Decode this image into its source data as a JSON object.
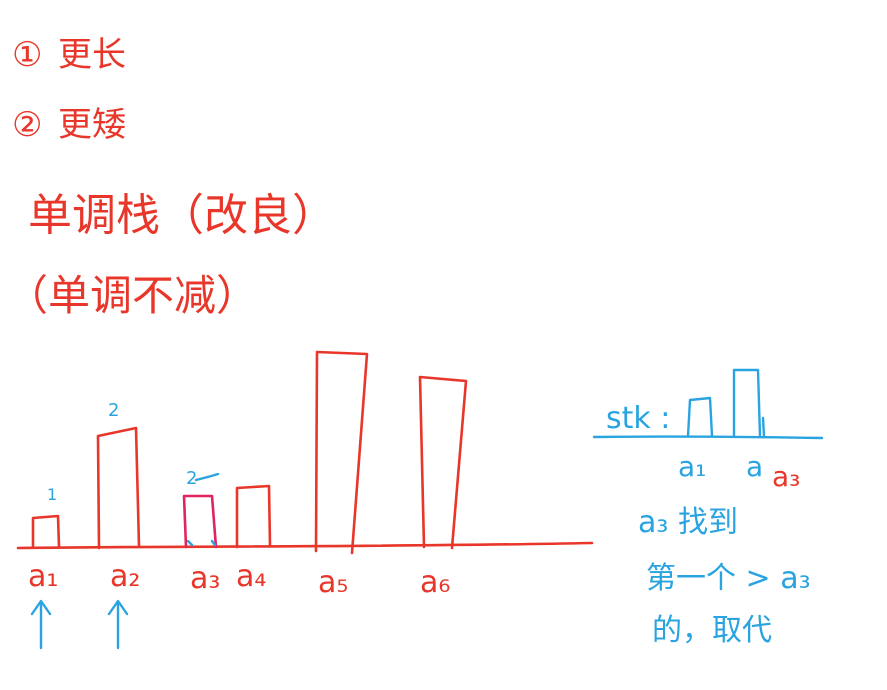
{
  "notes": {
    "line1_marker": "①",
    "line1_text": "更长",
    "line2_marker": "②",
    "line2_text": "更矮",
    "title": "单调栈（改良）",
    "subtitle": "（单调不减）"
  },
  "bars": [
    {
      "label": "a₁",
      "count": "1",
      "arrow": true
    },
    {
      "label": "a₂",
      "count": "2",
      "arrow": true
    },
    {
      "label": "a₃",
      "count": "2",
      "arrow": false
    },
    {
      "label": "a₄",
      "count": "",
      "arrow": false
    },
    {
      "label": "a₅",
      "count": "",
      "arrow": false
    },
    {
      "label": "a₆",
      "count": "",
      "arrow": false
    }
  ],
  "stack": {
    "prefix": "stk :",
    "item1": "a₁",
    "item2": "a₃",
    "item2_overwritten": "a",
    "note_line1": "a₃ 找到",
    "note_line2": "第一个 > a₃",
    "note_line3": "的，取代"
  },
  "colors": {
    "red_ink": "#e8372a",
    "pink_ink": "#e0245e",
    "blue_ink": "#29a4e0"
  },
  "icons": {
    "up_arrow": "up-arrow-icon"
  }
}
